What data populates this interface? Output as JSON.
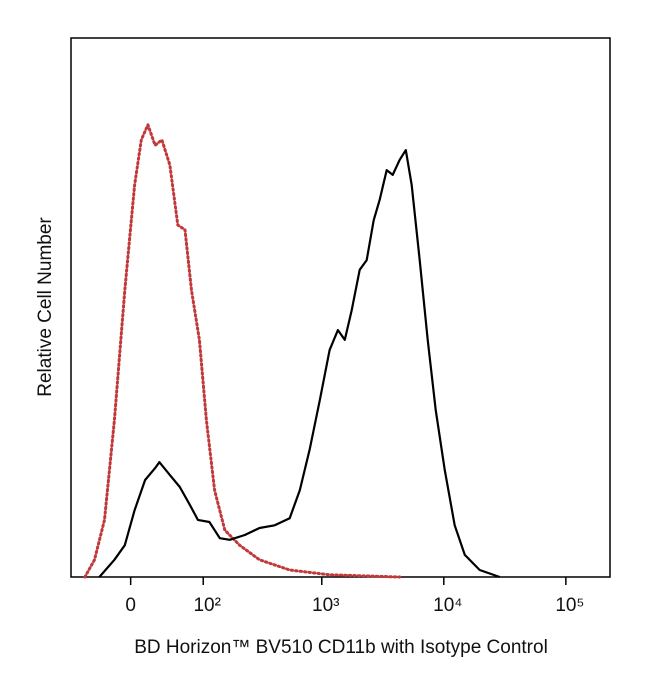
{
  "chart_data": {
    "type": "line",
    "xlabel": "BD Horizon™ BV510 CD11b with Isotype Control",
    "ylabel": "Relative Cell Number",
    "xscale": "asinh",
    "xlim": [
      -75,
      230000
    ],
    "xticks": [
      0,
      {
        "value": 100,
        "label": "10²"
      },
      {
        "value": 1000,
        "label": "10³"
      },
      {
        "value": 10000,
        "label": "10⁴"
      },
      {
        "value": 100000,
        "label": "10⁵"
      }
    ],
    "ylim": [
      0,
      100
    ],
    "series": [
      {
        "color": "#c0393b",
        "style": "dotted",
        "x": [
          -53,
          -40,
          -28,
          -17,
          -6,
          4,
          11,
          18,
          26,
          34,
          44,
          55,
          66,
          77,
          92,
          107,
          127,
          156,
          209,
          307,
          545,
          1160,
          4350
        ],
        "values": [
          0,
          3.2,
          10.6,
          29.1,
          53.2,
          72.7,
          81.1,
          83.9,
          80.1,
          81.1,
          76.4,
          65.3,
          64.4,
          53.2,
          44,
          29.1,
          16.1,
          8.7,
          5.9,
          3.2,
          1.3,
          0.4,
          0
        ]
      },
      {
        "color": "#000000",
        "style": "solid",
        "x": [
          -34,
          -17,
          -6,
          4,
          15,
          26,
          31,
          44,
          58,
          74,
          89,
          114,
          141,
          172,
          231,
          307,
          410,
          545,
          660,
          795,
          963,
          1160,
          1355,
          1545,
          1760,
          2045,
          2335,
          2665,
          2985,
          3405,
          3815,
          4350,
          4880,
          5460,
          6350,
          7380,
          8585,
          10170,
          12290,
          14850,
          19700,
          28700
        ],
        "values": [
          0,
          3.2,
          5.9,
          12.4,
          18,
          20.2,
          21.3,
          18.9,
          16.7,
          13.4,
          10.6,
          10.2,
          7.2,
          6.9,
          7.8,
          9.1,
          9.6,
          10.9,
          16.1,
          23.6,
          32.8,
          42.1,
          45.8,
          44,
          49.5,
          57,
          58.8,
          66.2,
          70,
          75.5,
          74.6,
          77.4,
          79.2,
          72.7,
          58.8,
          44,
          31,
          19.9,
          9.6,
          4.1,
          1.3,
          0
        ]
      }
    ]
  }
}
